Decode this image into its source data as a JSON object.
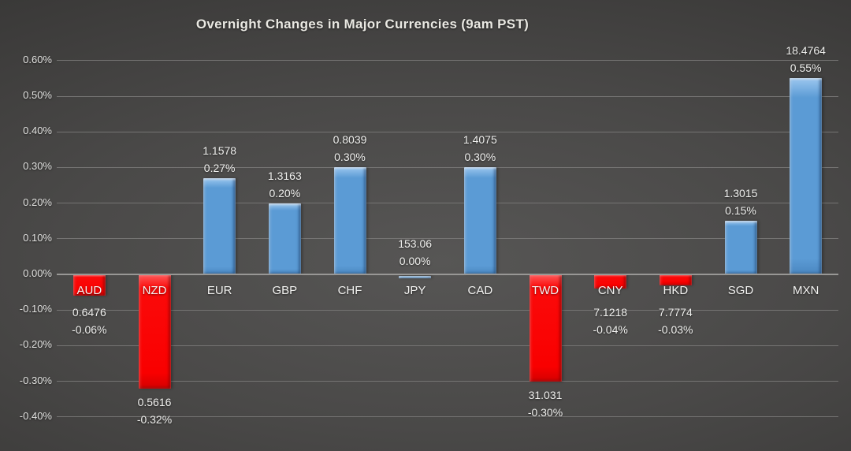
{
  "title": "Overnight Changes in Major Currencies (9am PST)",
  "colors": {
    "background_center": "#575655",
    "background_edge": "#262525",
    "positive_bar": "#5B9BD5",
    "negative_bar": "#F90000",
    "gridline": "#757473",
    "axis_line": "#989795",
    "title_text": "#EAE9E3",
    "label_text": "#F1F1EF"
  },
  "chart_data": {
    "type": "bar",
    "title": "Overnight Changes in Major Currencies (9am PST)",
    "xlabel": "",
    "ylabel": "",
    "ylim": [
      -0.44,
      0.64
    ],
    "grid": true,
    "legend": "none",
    "categories": [
      "AUD",
      "NZD",
      "EUR",
      "GBP",
      "CHF",
      "JPY",
      "CAD",
      "TWD",
      "CNY",
      "HKD",
      "SGD",
      "MXN"
    ],
    "series": [
      {
        "name": "Overnight % change",
        "values": [
          -0.06,
          -0.32,
          0.27,
          0.2,
          0.3,
          0.0,
          0.3,
          -0.3,
          -0.04,
          -0.03,
          0.15,
          0.55
        ]
      },
      {
        "name": "Exchange rate",
        "values": [
          0.6476,
          0.5616,
          1.1578,
          1.3163,
          0.8039,
          153.06,
          1.4075,
          31.031,
          7.1218,
          7.7774,
          1.3015,
          18.4764
        ]
      }
    ],
    "bar_label_line1": [
      "0.6476",
      "0.5616",
      "1.1578",
      "1.3163",
      "0.8039",
      "153.06",
      "1.4075",
      "31.031",
      "7.1218",
      "7.7774",
      "1.3015",
      "18.4764"
    ],
    "bar_label_line2": [
      "-0.06%",
      "-0.32%",
      "0.27%",
      "0.20%",
      "0.30%",
      "0.00%",
      "0.30%",
      "-0.30%",
      "-0.04%",
      "-0.03%",
      "0.15%",
      "0.55%"
    ],
    "y_tick_labels": [
      "0.60%",
      "0.50%",
      "0.40%",
      "0.30%",
      "0.20%",
      "0.10%",
      "0.00%",
      "-0.10%",
      "-0.20%",
      "-0.30%",
      "-0.40%"
    ],
    "y_tick_values": [
      0.6,
      0.5,
      0.4,
      0.3,
      0.2,
      0.1,
      0.0,
      -0.1,
      -0.2,
      -0.3,
      -0.4
    ]
  }
}
